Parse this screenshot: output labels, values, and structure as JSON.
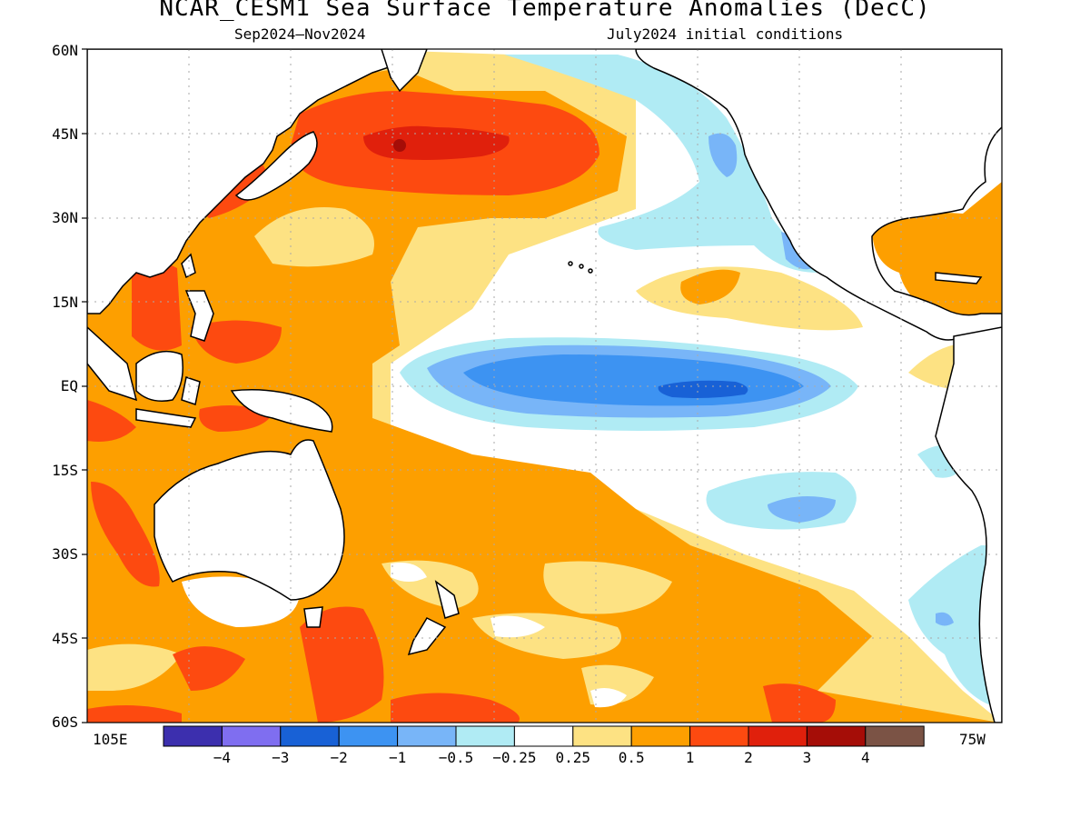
{
  "header": {
    "title": "NCAR_CESM1 Sea Surface Temperature Anomalies (DecC)",
    "period": "Sep2024–Nov2024",
    "initial": "July2024 initial conditions"
  },
  "axes": {
    "lat_labels": [
      "60N",
      "45N",
      "30N",
      "15N",
      "EQ",
      "15S",
      "30S",
      "45S",
      "60S"
    ],
    "lon_left": "105E",
    "lon_right": "75W"
  },
  "colorbar": {
    "labels": [
      "−4",
      "−3",
      "−2",
      "−1",
      "−0.5",
      "−0.25",
      "0.25",
      "0.5",
      "1",
      "2",
      "3",
      "4"
    ],
    "colors": [
      "#3c2fae",
      "#7f6ef0",
      "#1861d6",
      "#3d93f2",
      "#78b5f8",
      "#b0ebf4",
      "#ffffff",
      "#fde283",
      "#fd9f00",
      "#fd4a10",
      "#e0200c",
      "#a50d07",
      "#7b5345"
    ]
  },
  "colors": {
    "land": "#ffffff",
    "coast": "#000000",
    "grid": "#aaaaaa"
  }
}
